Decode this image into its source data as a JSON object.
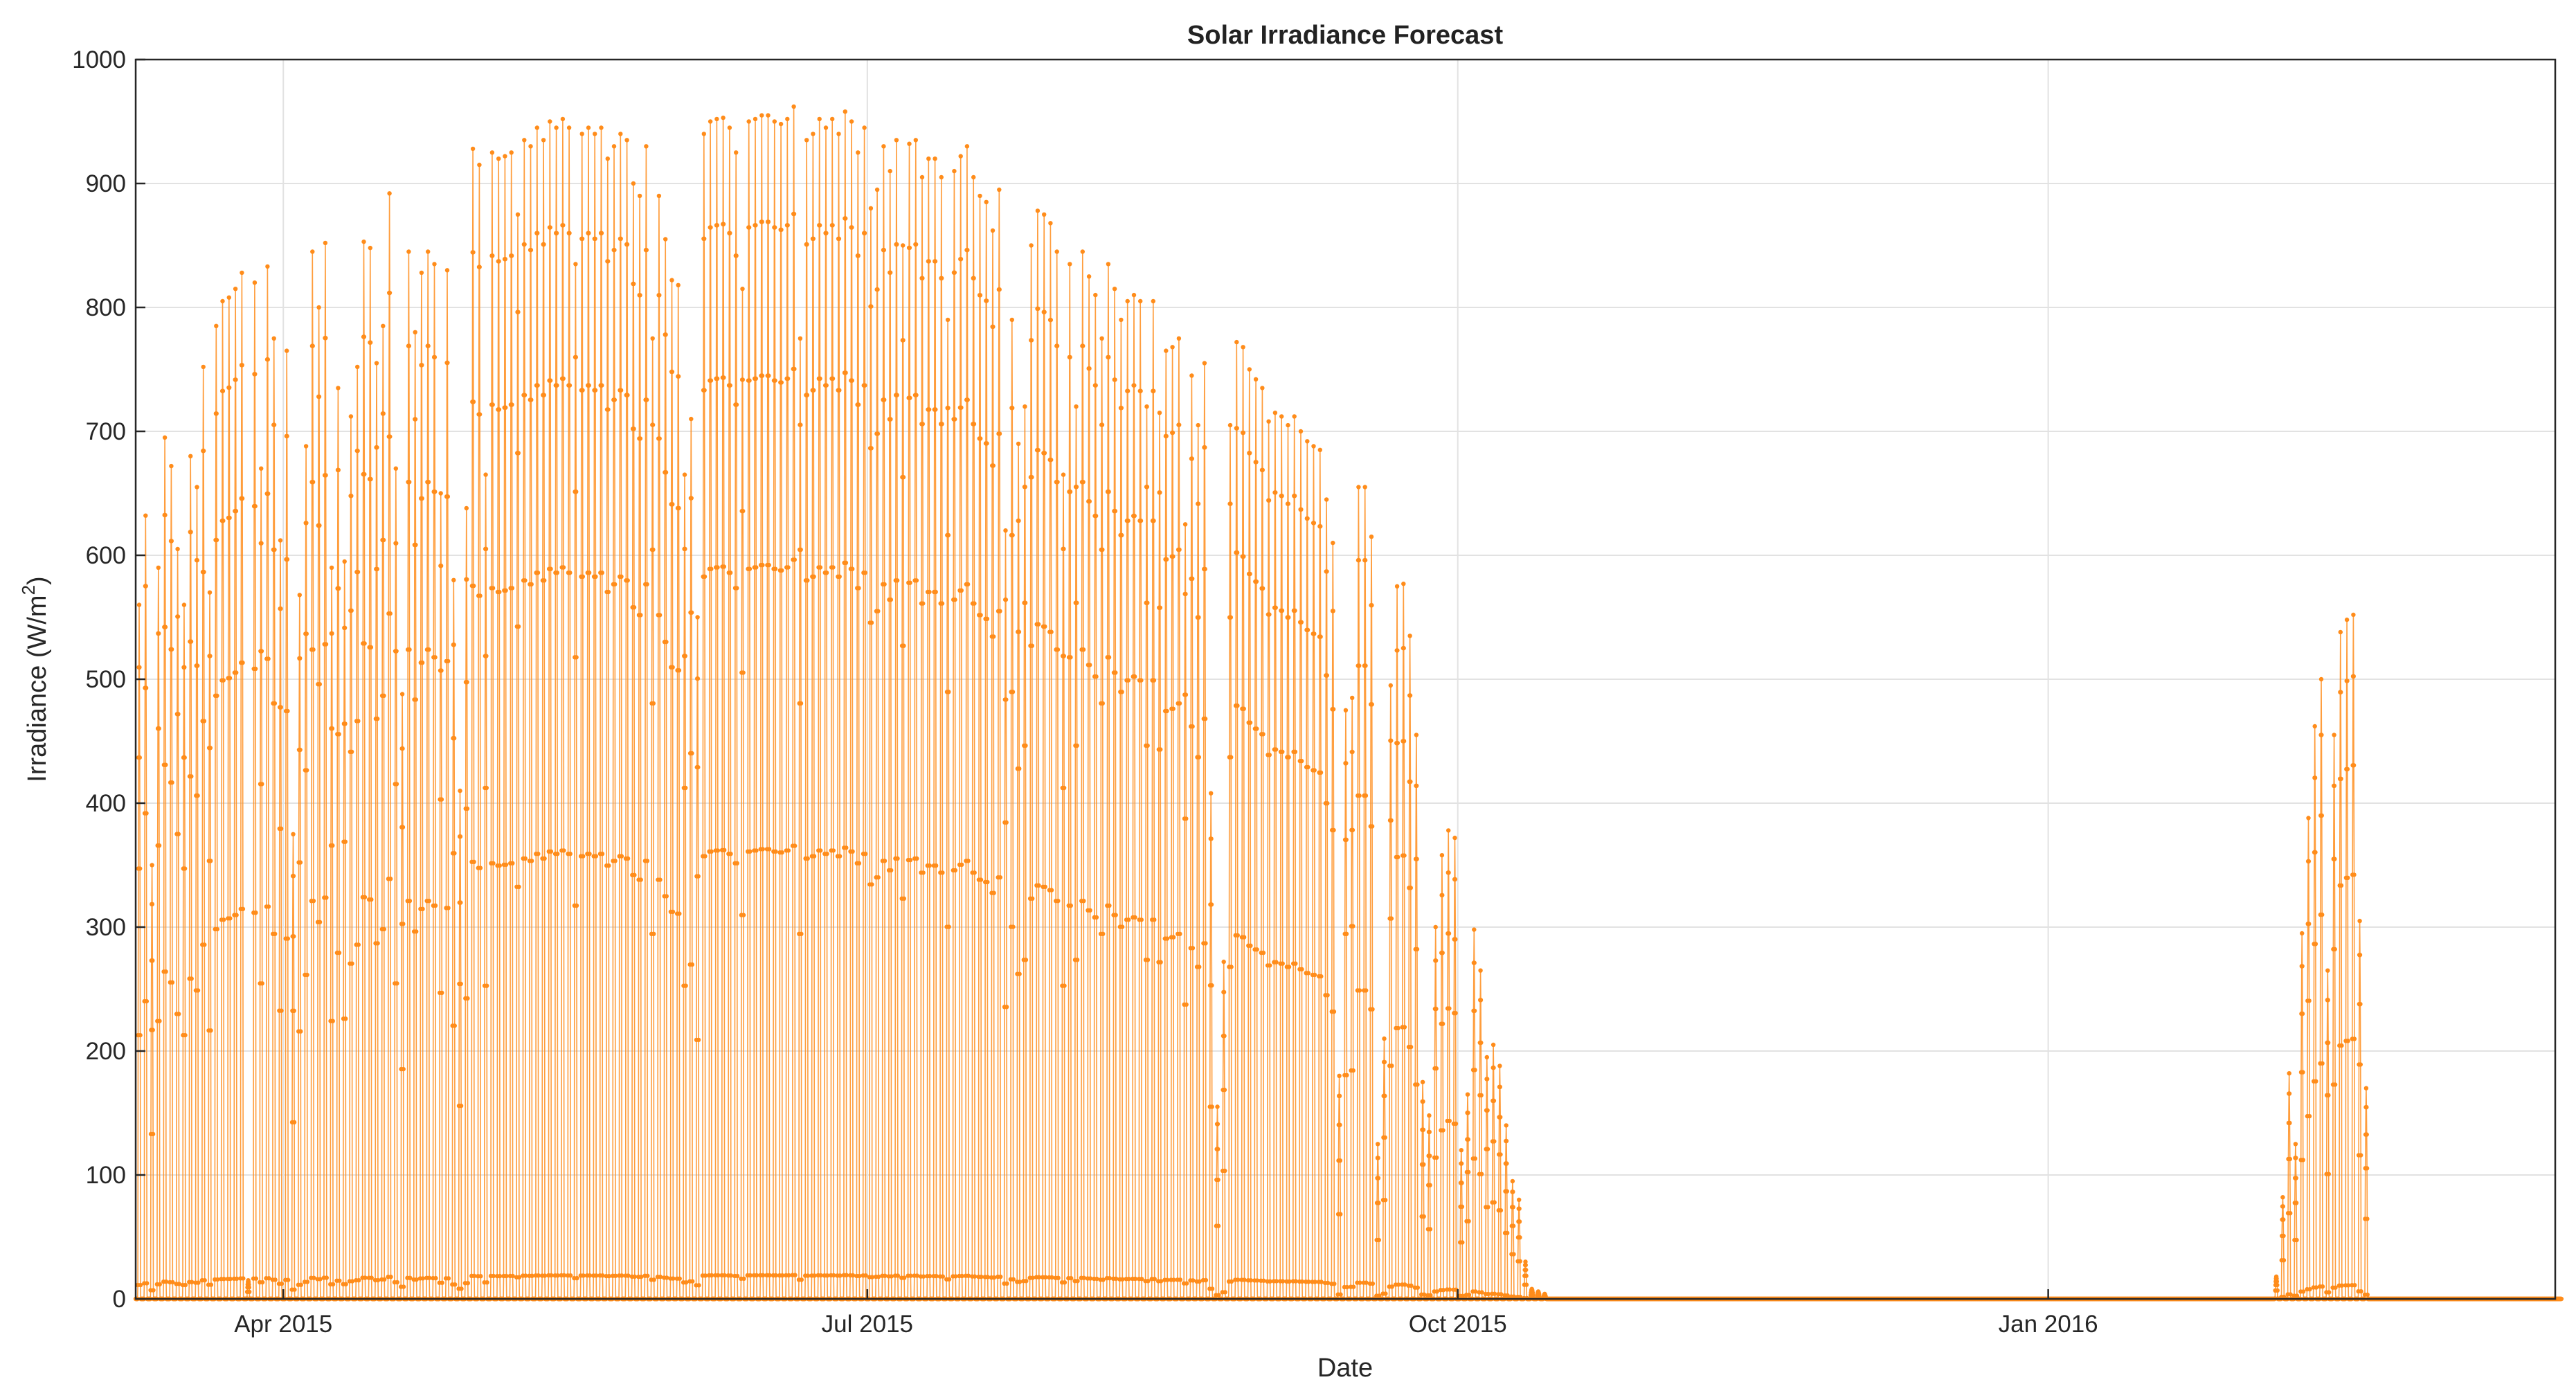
{
  "chart_data": {
    "type": "line",
    "title": "Solar Irradiance Forecast",
    "xlabel": "Date",
    "ylabel": "Irradiance (W/m²)",
    "ylabel_parts": {
      "main": "Irradiance (W/m",
      "sup": "2",
      "end": ")"
    },
    "x_range": [
      "2015-03-09",
      "2016-03-20"
    ],
    "ylim": [
      0,
      1000
    ],
    "yticks": [
      "0",
      "100",
      "200",
      "300",
      "400",
      "500",
      "600",
      "700",
      "800",
      "900",
      "1000"
    ],
    "xticks": [
      {
        "date": "2015-04-01",
        "label": "Apr 2015"
      },
      {
        "date": "2015-07-01",
        "label": "Jul 2015"
      },
      {
        "date": "2015-10-01",
        "label": "Oct 2015"
      },
      {
        "date": "2016-01-01",
        "label": "Jan 2016"
      }
    ],
    "grid": true,
    "line_color": "#ff8c1a",
    "series": [
      {
        "sampling": "hourly, 08:00-18:00 each day",
        "daily_peak": [
          [
            "2015-03-09",
            560
          ],
          [
            "2015-03-10",
            632
          ],
          [
            "2015-03-11",
            350
          ],
          [
            "2015-03-12",
            590
          ],
          [
            "2015-03-13",
            695
          ],
          [
            "2015-03-14",
            672
          ],
          [
            "2015-03-15",
            605
          ],
          [
            "2015-03-16",
            560
          ],
          [
            "2015-03-17",
            680
          ],
          [
            "2015-03-18",
            655
          ],
          [
            "2015-03-19",
            752
          ],
          [
            "2015-03-20",
            570
          ],
          [
            "2015-03-21",
            785
          ],
          [
            "2015-03-22",
            805
          ],
          [
            "2015-03-23",
            808
          ],
          [
            "2015-03-24",
            815
          ],
          [
            "2015-03-25",
            828
          ],
          [
            "2015-03-26",
            15
          ],
          [
            "2015-03-27",
            820
          ],
          [
            "2015-03-28",
            670
          ],
          [
            "2015-03-29",
            833
          ],
          [
            "2015-03-30",
            775
          ],
          [
            "2015-03-31",
            612
          ],
          [
            "2015-04-01",
            765
          ],
          [
            "2015-04-02",
            375
          ],
          [
            "2015-04-03",
            568
          ],
          [
            "2015-04-04",
            688
          ],
          [
            "2015-04-05",
            845
          ],
          [
            "2015-04-06",
            800
          ],
          [
            "2015-04-07",
            852
          ],
          [
            "2015-04-08",
            590
          ],
          [
            "2015-04-09",
            735
          ],
          [
            "2015-04-10",
            595
          ],
          [
            "2015-04-11",
            712
          ],
          [
            "2015-04-12",
            752
          ],
          [
            "2015-04-13",
            853
          ],
          [
            "2015-04-14",
            848
          ],
          [
            "2015-04-15",
            755
          ],
          [
            "2015-04-16",
            785
          ],
          [
            "2015-04-17",
            892
          ],
          [
            "2015-04-18",
            670
          ],
          [
            "2015-04-19",
            488
          ],
          [
            "2015-04-20",
            845
          ],
          [
            "2015-04-21",
            780
          ],
          [
            "2015-04-22",
            828
          ],
          [
            "2015-04-23",
            845
          ],
          [
            "2015-04-24",
            835
          ],
          [
            "2015-04-25",
            650
          ],
          [
            "2015-04-26",
            830
          ],
          [
            "2015-04-27",
            580
          ],
          [
            "2015-04-28",
            410
          ],
          [
            "2015-04-29",
            638
          ],
          [
            "2015-04-30",
            928
          ],
          [
            "2015-05-01",
            915
          ],
          [
            "2015-05-02",
            665
          ],
          [
            "2015-05-03",
            925
          ],
          [
            "2015-05-04",
            920
          ],
          [
            "2015-05-05",
            922
          ],
          [
            "2015-05-06",
            925
          ],
          [
            "2015-05-07",
            875
          ],
          [
            "2015-05-08",
            935
          ],
          [
            "2015-05-09",
            930
          ],
          [
            "2015-05-10",
            945
          ],
          [
            "2015-05-11",
            935
          ],
          [
            "2015-05-12",
            950
          ],
          [
            "2015-05-13",
            945
          ],
          [
            "2015-05-14",
            952
          ],
          [
            "2015-05-15",
            945
          ],
          [
            "2015-05-16",
            835
          ],
          [
            "2015-05-17",
            940
          ],
          [
            "2015-05-18",
            945
          ],
          [
            "2015-05-19",
            940
          ],
          [
            "2015-05-20",
            945
          ],
          [
            "2015-05-21",
            920
          ],
          [
            "2015-05-22",
            930
          ],
          [
            "2015-05-23",
            940
          ],
          [
            "2015-05-24",
            935
          ],
          [
            "2015-05-25",
            900
          ],
          [
            "2015-05-26",
            890
          ],
          [
            "2015-05-27",
            930
          ],
          [
            "2015-05-28",
            775
          ],
          [
            "2015-05-29",
            890
          ],
          [
            "2015-05-30",
            855
          ],
          [
            "2015-05-31",
            822
          ],
          [
            "2015-06-01",
            818
          ],
          [
            "2015-06-02",
            665
          ],
          [
            "2015-06-03",
            710
          ],
          [
            "2015-06-04",
            550
          ],
          [
            "2015-06-05",
            940
          ],
          [
            "2015-06-06",
            950
          ],
          [
            "2015-06-07",
            952
          ],
          [
            "2015-06-08",
            953
          ],
          [
            "2015-06-09",
            945
          ],
          [
            "2015-06-10",
            925
          ],
          [
            "2015-06-11",
            815
          ],
          [
            "2015-06-12",
            950
          ],
          [
            "2015-06-13",
            952
          ],
          [
            "2015-06-14",
            955
          ],
          [
            "2015-06-15",
            955
          ],
          [
            "2015-06-16",
            950
          ],
          [
            "2015-06-17",
            948
          ],
          [
            "2015-06-18",
            952
          ],
          [
            "2015-06-19",
            962
          ],
          [
            "2015-06-20",
            775
          ],
          [
            "2015-06-21",
            935
          ],
          [
            "2015-06-22",
            940
          ],
          [
            "2015-06-23",
            952
          ],
          [
            "2015-06-24",
            945
          ],
          [
            "2015-06-25",
            952
          ],
          [
            "2015-06-26",
            940
          ],
          [
            "2015-06-27",
            958
          ],
          [
            "2015-06-28",
            950
          ],
          [
            "2015-06-29",
            925
          ],
          [
            "2015-06-30",
            945
          ],
          [
            "2015-07-01",
            880
          ],
          [
            "2015-07-02",
            895
          ],
          [
            "2015-07-03",
            930
          ],
          [
            "2015-07-04",
            910
          ],
          [
            "2015-07-05",
            935
          ],
          [
            "2015-07-06",
            850
          ],
          [
            "2015-07-07",
            932
          ],
          [
            "2015-07-08",
            935
          ],
          [
            "2015-07-09",
            905
          ],
          [
            "2015-07-10",
            920
          ],
          [
            "2015-07-11",
            920
          ],
          [
            "2015-07-12",
            905
          ],
          [
            "2015-07-13",
            790
          ],
          [
            "2015-07-14",
            910
          ],
          [
            "2015-07-15",
            922
          ],
          [
            "2015-07-16",
            930
          ],
          [
            "2015-07-17",
            905
          ],
          [
            "2015-07-18",
            890
          ],
          [
            "2015-07-19",
            885
          ],
          [
            "2015-07-20",
            862
          ],
          [
            "2015-07-21",
            895
          ],
          [
            "2015-07-22",
            620
          ],
          [
            "2015-07-23",
            790
          ],
          [
            "2015-07-24",
            690
          ],
          [
            "2015-07-25",
            720
          ],
          [
            "2015-07-26",
            850
          ],
          [
            "2015-07-27",
            878
          ],
          [
            "2015-07-28",
            875
          ],
          [
            "2015-07-29",
            868
          ],
          [
            "2015-07-30",
            845
          ],
          [
            "2015-07-31",
            665
          ],
          [
            "2015-08-01",
            835
          ],
          [
            "2015-08-02",
            720
          ],
          [
            "2015-08-03",
            845
          ],
          [
            "2015-08-04",
            825
          ],
          [
            "2015-08-05",
            810
          ],
          [
            "2015-08-06",
            775
          ],
          [
            "2015-08-07",
            835
          ],
          [
            "2015-08-08",
            815
          ],
          [
            "2015-08-09",
            790
          ],
          [
            "2015-08-10",
            805
          ],
          [
            "2015-08-11",
            810
          ],
          [
            "2015-08-12",
            805
          ],
          [
            "2015-08-13",
            720
          ],
          [
            "2015-08-14",
            805
          ],
          [
            "2015-08-15",
            715
          ],
          [
            "2015-08-16",
            765
          ],
          [
            "2015-08-17",
            768
          ],
          [
            "2015-08-18",
            775
          ],
          [
            "2015-08-19",
            625
          ],
          [
            "2015-08-20",
            745
          ],
          [
            "2015-08-21",
            705
          ],
          [
            "2015-08-22",
            755
          ],
          [
            "2015-08-23",
            408
          ],
          [
            "2015-08-24",
            155
          ],
          [
            "2015-08-25",
            272
          ],
          [
            "2015-08-26",
            705
          ],
          [
            "2015-08-27",
            772
          ],
          [
            "2015-08-28",
            768
          ],
          [
            "2015-08-29",
            750
          ],
          [
            "2015-08-30",
            742
          ],
          [
            "2015-08-31",
            735
          ],
          [
            "2015-09-01",
            708
          ],
          [
            "2015-09-02",
            715
          ],
          [
            "2015-09-03",
            712
          ],
          [
            "2015-09-04",
            705
          ],
          [
            "2015-09-05",
            712
          ],
          [
            "2015-09-06",
            700
          ],
          [
            "2015-09-07",
            692
          ],
          [
            "2015-09-08",
            688
          ],
          [
            "2015-09-09",
            685
          ],
          [
            "2015-09-10",
            645
          ],
          [
            "2015-09-11",
            610
          ],
          [
            "2015-09-12",
            180
          ],
          [
            "2015-09-13",
            475
          ],
          [
            "2015-09-14",
            485
          ],
          [
            "2015-09-15",
            655
          ],
          [
            "2015-09-16",
            655
          ],
          [
            "2015-09-17",
            615
          ],
          [
            "2015-09-18",
            125
          ],
          [
            "2015-09-19",
            210
          ],
          [
            "2015-09-20",
            495
          ],
          [
            "2015-09-21",
            575
          ],
          [
            "2015-09-22",
            577
          ],
          [
            "2015-09-23",
            535
          ],
          [
            "2015-09-24",
            455
          ],
          [
            "2015-09-25",
            175
          ],
          [
            "2015-09-26",
            148
          ],
          [
            "2015-09-27",
            300
          ],
          [
            "2015-09-28",
            358
          ],
          [
            "2015-09-29",
            378
          ],
          [
            "2015-09-30",
            372
          ],
          [
            "2015-10-01",
            120
          ],
          [
            "2015-10-02",
            165
          ],
          [
            "2015-10-03",
            298
          ],
          [
            "2015-10-04",
            265
          ],
          [
            "2015-10-05",
            195
          ],
          [
            "2015-10-06",
            205
          ],
          [
            "2015-10-07",
            188
          ],
          [
            "2015-10-08",
            140
          ],
          [
            "2015-10-09",
            95
          ],
          [
            "2015-10-10",
            80
          ],
          [
            "2015-10-11",
            30
          ],
          [
            "2015-10-12",
            8
          ],
          [
            "2015-10-13",
            6
          ],
          [
            "2015-10-14",
            4
          ],
          [
            "2016-02-05",
            18
          ],
          [
            "2016-02-06",
            82
          ],
          [
            "2016-02-07",
            182
          ],
          [
            "2016-02-08",
            125
          ],
          [
            "2016-02-09",
            295
          ],
          [
            "2016-02-10",
            388
          ],
          [
            "2016-02-11",
            462
          ],
          [
            "2016-02-12",
            500
          ],
          [
            "2016-02-13",
            265
          ],
          [
            "2016-02-14",
            455
          ],
          [
            "2016-02-15",
            538
          ],
          [
            "2016-02-16",
            548
          ],
          [
            "2016-02-17",
            552
          ],
          [
            "2016-02-18",
            305
          ],
          [
            "2016-02-19",
            170
          ]
        ],
        "hour_fraction_of_peak": [
          0.02,
          0.38,
          0.62,
          0.78,
          0.91,
          1.0,
          0.91,
          0.78,
          0.62,
          0.38,
          0.02
        ]
      }
    ]
  }
}
